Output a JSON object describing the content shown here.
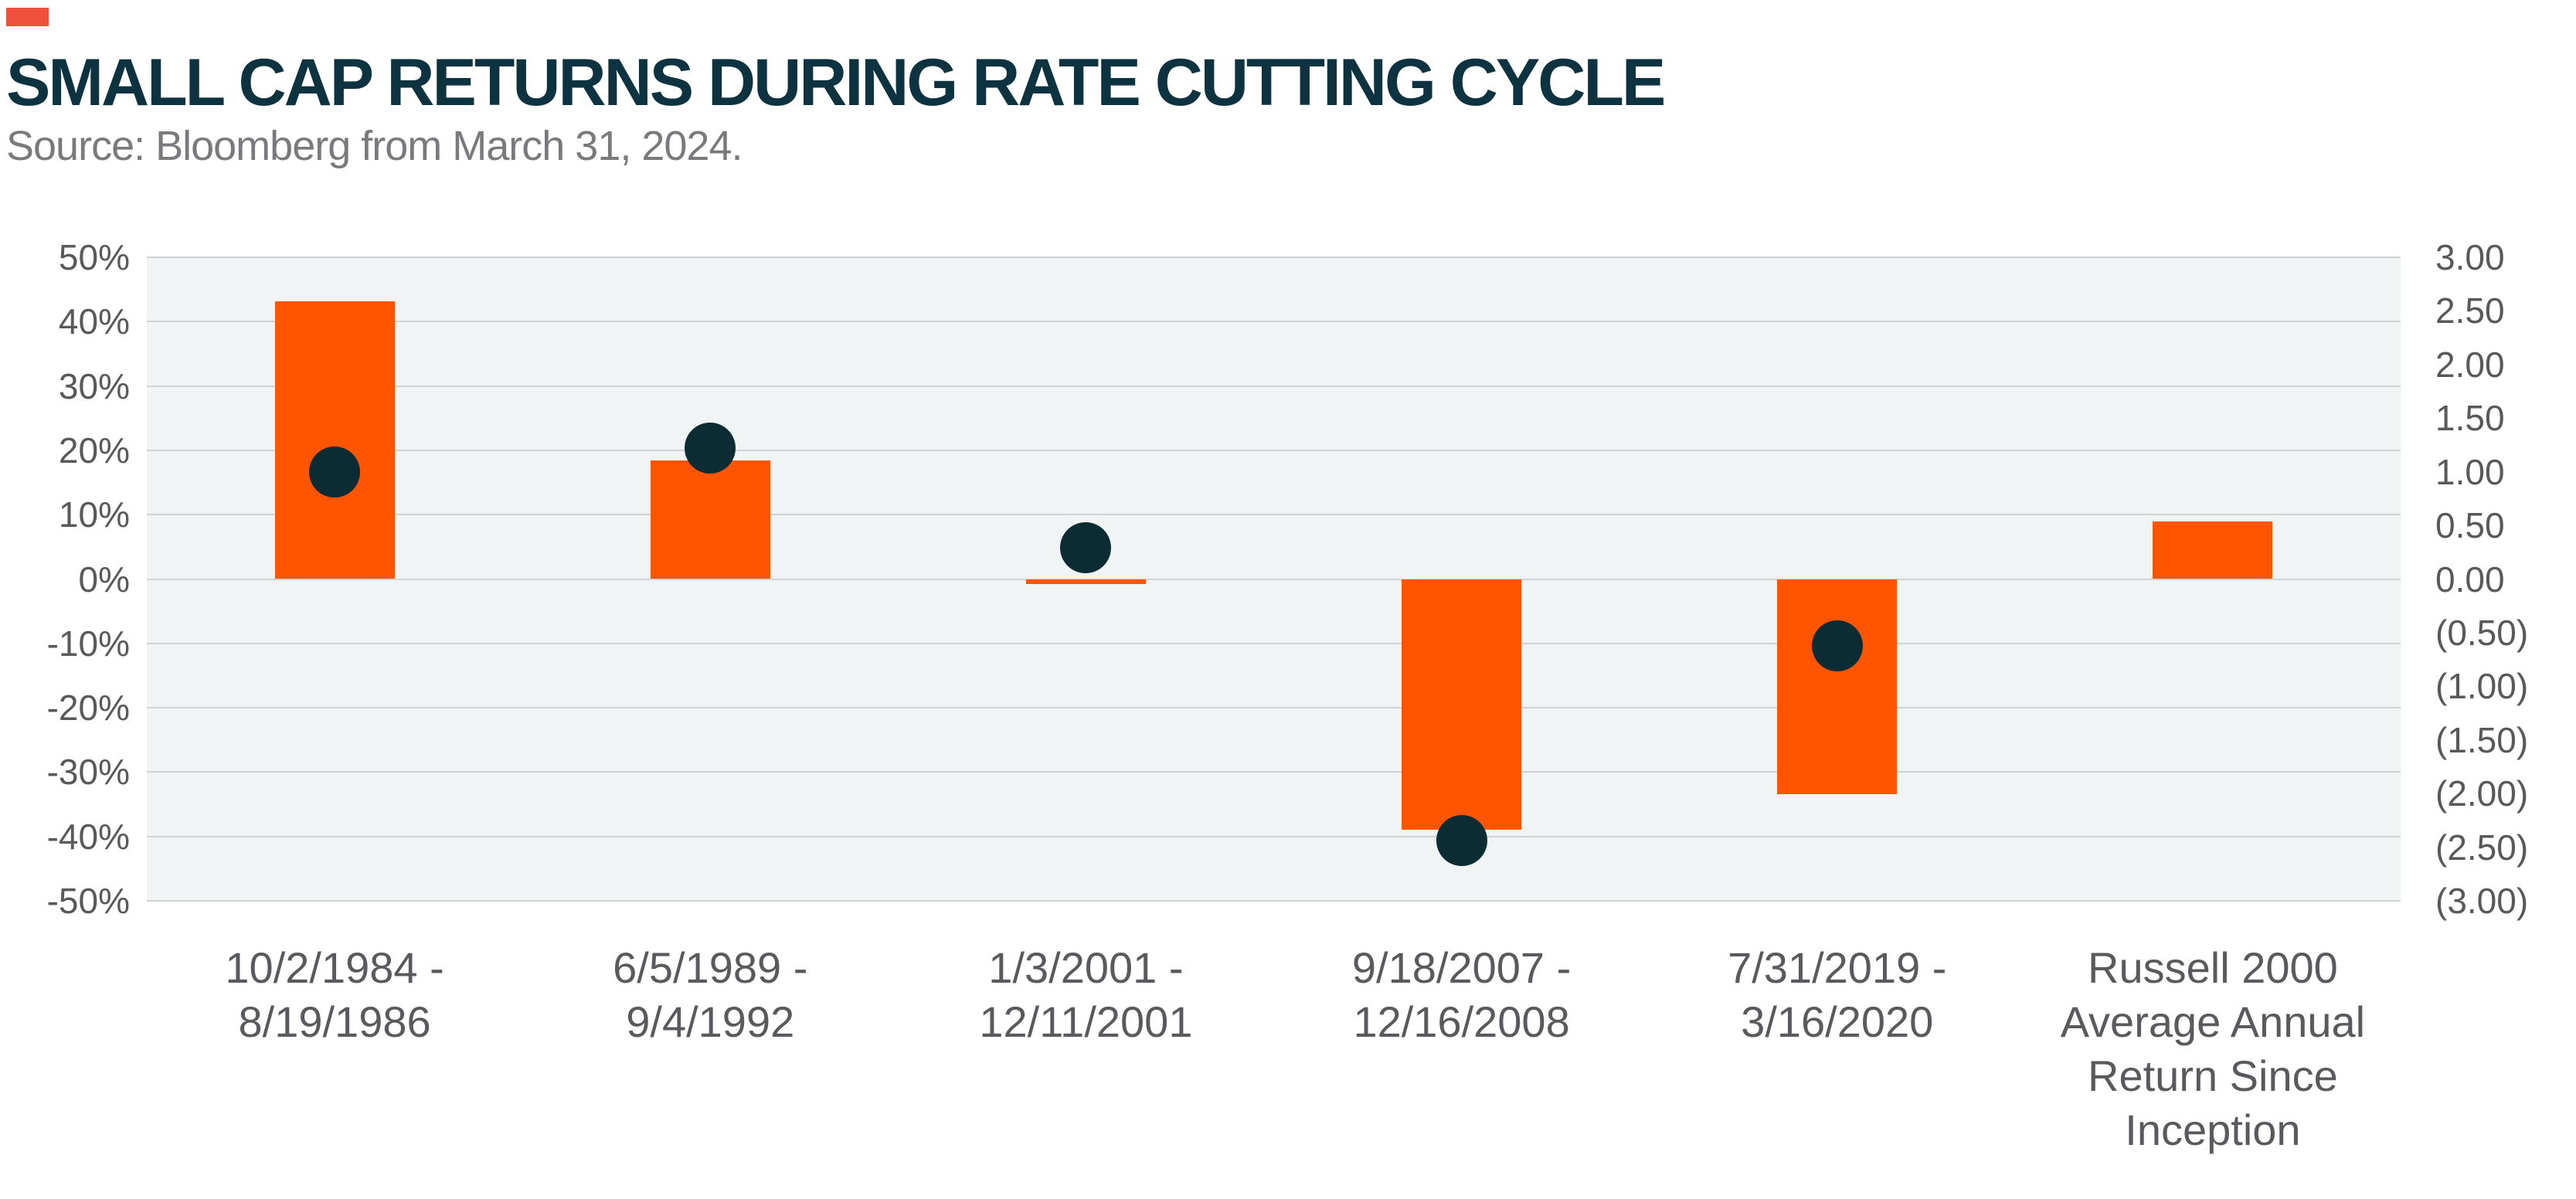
{
  "header": {
    "title": "SMALL CAP RETURNS DURING RATE CUTTING CYCLE",
    "source": "Source: Bloomberg from March 31, 2024.",
    "accent_color": "#f0513c"
  },
  "chart_data": {
    "type": "bar",
    "title": "SMALL CAP RETURNS DURING RATE CUTTING CYCLE",
    "subtitle": "Source: Bloomberg from March 31, 2024.",
    "grid": true,
    "legend": "none",
    "categories": [
      [
        "10/2/1984 -",
        "8/19/1986"
      ],
      [
        "6/5/1989 -",
        "9/4/1992"
      ],
      [
        "1/3/2001 -",
        "12/11/2001"
      ],
      [
        "9/18/2007 -",
        "12/16/2008"
      ],
      [
        "7/31/2019 -",
        "3/16/2020"
      ],
      [
        "Russell 2000",
        "Average Annual",
        "Return Since",
        "Inception"
      ]
    ],
    "series": [
      {
        "id": "return-bars",
        "type": "bar",
        "axis": "left",
        "unit": "%",
        "color": "#ff5500",
        "values": [
          43.1,
          18.4,
          -0.8,
          -38.9,
          -33.4,
          8.9
        ]
      },
      {
        "id": "dots",
        "type": "scatter",
        "axis": "right",
        "color": "#0b2c33",
        "values": [
          1.0,
          1.22,
          0.29,
          -2.44,
          -0.62,
          null
        ]
      }
    ],
    "left_axis": {
      "min": -50,
      "max": 50,
      "ticks": [
        "50%",
        "40%",
        "30%",
        "20%",
        "10%",
        "0%",
        "-10%",
        "-20%",
        "-30%",
        "-40%",
        "-50%"
      ]
    },
    "right_axis": {
      "min": -3,
      "max": 3,
      "ticks": [
        "3.00",
        "2.50",
        "2.00",
        "1.50",
        "1.00",
        "0.50",
        "0.00",
        "(0.50)",
        "(1.00)",
        "(1.50)",
        "(2.00)",
        "(2.50)",
        "(3.00)"
      ]
    }
  }
}
